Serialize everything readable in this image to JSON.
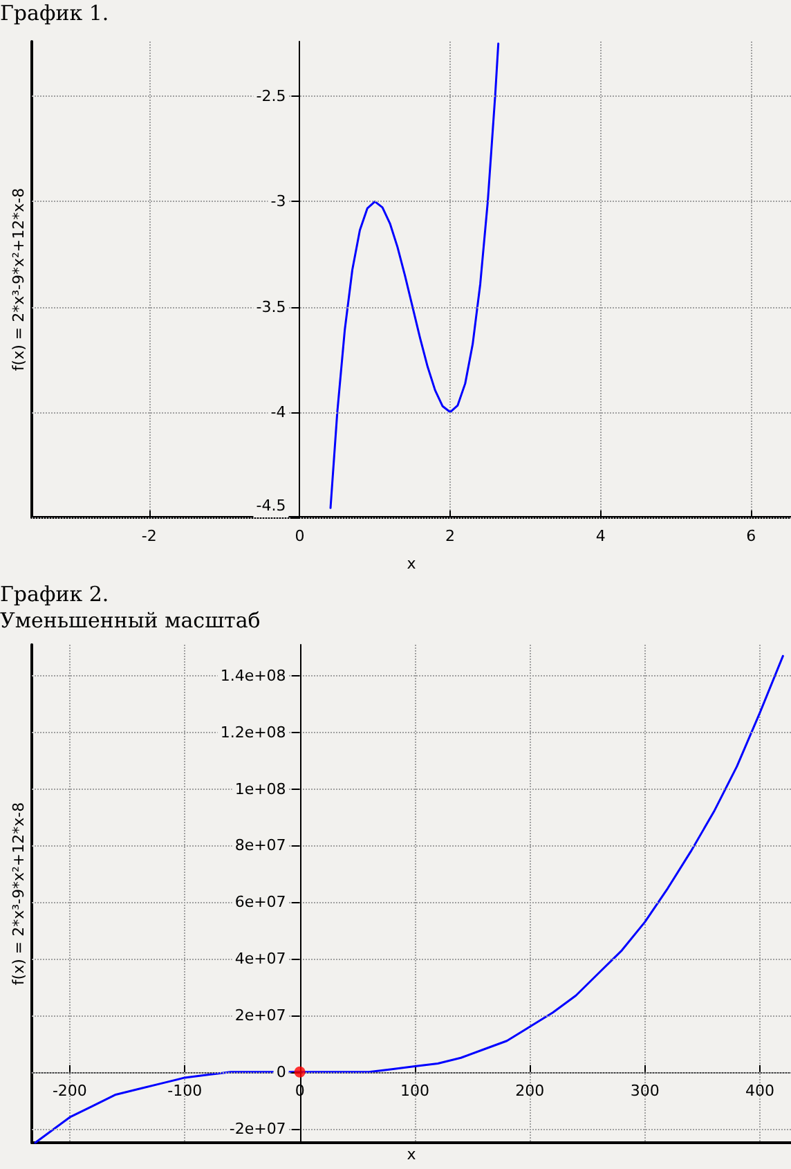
{
  "chart_data": [
    {
      "type": "line",
      "title": "График 1.",
      "xlabel": "x",
      "ylabel": "f(x) = 2*x³-9*x²+12*x-8",
      "grid": true,
      "line_style": "solid",
      "xlim": [
        -3.56,
        6.53
      ],
      "ylim": [
        -4.5,
        -2.24
      ],
      "xticks": [
        -2,
        0,
        2,
        4,
        6
      ],
      "yticks": [
        -4.5,
        -4,
        -3.5,
        -3,
        -2.5
      ],
      "series": [
        {
          "color": "#0000ff",
          "marker": "none",
          "x": [
            0.41,
            0.5,
            0.6,
            0.7,
            0.8,
            0.9,
            1.0,
            1.1,
            1.2,
            1.3,
            1.4,
            1.5,
            1.6,
            1.7,
            1.8,
            1.9,
            2.0,
            2.1,
            2.2,
            2.3,
            2.4,
            2.5,
            2.6,
            2.64
          ],
          "values": [
            -4.455,
            -4.0,
            -3.608,
            -3.324,
            -3.136,
            -3.032,
            -3.0,
            -3.028,
            -3.104,
            -3.216,
            -3.352,
            -3.5,
            -3.648,
            -3.784,
            -3.896,
            -3.972,
            -4.0,
            -3.968,
            -3.864,
            -3.676,
            -3.392,
            -3.0,
            -2.488,
            -2.25
          ]
        }
      ]
    },
    {
      "type": "line",
      "title": "График 2.",
      "subtitle": "Уменьшенный масштаб",
      "xlabel": "x",
      "ylabel": "f(x) = 2*x³-9*x²+12*x-8",
      "grid": true,
      "line_style": "solid",
      "xlim": [
        -233,
        427
      ],
      "ylim": [
        -25000000,
        151000000
      ],
      "xticks": [
        -200,
        -100,
        0,
        100,
        200,
        300,
        400
      ],
      "yticks": [
        {
          "value": -20000000,
          "label": "-2e+07"
        },
        0,
        {
          "value": 20000000,
          "label": "2e+07"
        },
        {
          "value": 40000000,
          "label": "4e+07"
        },
        {
          "value": 60000000,
          "label": "6e+07"
        },
        {
          "value": 80000000,
          "label": "8e+07"
        },
        {
          "value": 100000000,
          "label": "1e+08"
        },
        {
          "value": 120000000,
          "label": "1.2e+08"
        },
        {
          "value": 140000000,
          "label": "1.4e+08"
        }
      ],
      "series": [
        {
          "color": "#0000ff",
          "marker": "none",
          "x": [
            -230,
            -220,
            -200,
            -180,
            -160,
            -140,
            -120,
            -100,
            -80,
            -60,
            -40,
            -20,
            0,
            20,
            40,
            60,
            80,
            100,
            120,
            140,
            160,
            180,
            200,
            220,
            240,
            260,
            280,
            300,
            320,
            340,
            360,
            380,
            400,
            420
          ],
          "values": [
            -25000000,
            -22000000,
            -16000000,
            -12000000,
            -8000000,
            -6000000,
            -4000000,
            -2000000,
            -1000000,
            0,
            0,
            0,
            0,
            0,
            0,
            0,
            1000000,
            2000000,
            3000000,
            5000000,
            8000000,
            11000000,
            16000000,
            21000000,
            27000000,
            35000000,
            43000000,
            53000000,
            65000000,
            78000000,
            92000000,
            108000000,
            127000000,
            147000000
          ]
        },
        {
          "type": "scatter",
          "marker": "circle",
          "color": "#ff0000",
          "x": [
            0
          ],
          "values": [
            0
          ]
        }
      ]
    }
  ]
}
